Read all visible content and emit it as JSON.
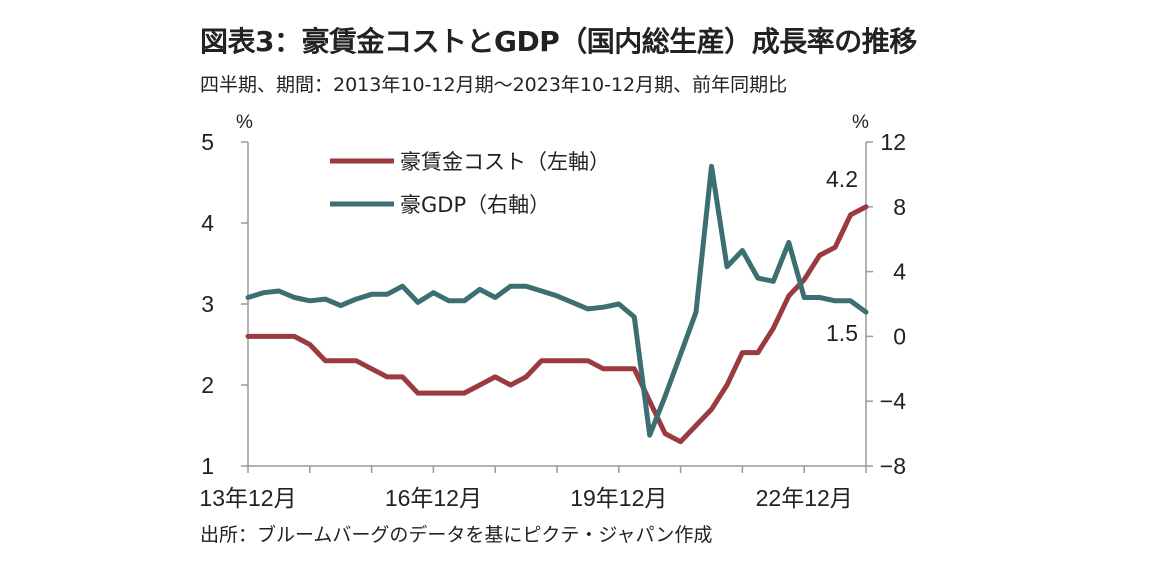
{
  "header": {
    "title": "図表3：豪賃金コストとGDP（国内総生産）成長率の推移",
    "subtitle": "四半期、期間：2013年10-12月期～2023年10-12月期、前年同期比"
  },
  "footer": {
    "source": "出所：ブルームバーグのデータを基にピクテ・ジャパン作成"
  },
  "chart_data": {
    "type": "line",
    "x": [
      "2013Q4",
      "2014Q1",
      "2014Q2",
      "2014Q3",
      "2014Q4",
      "2015Q1",
      "2015Q2",
      "2015Q3",
      "2015Q4",
      "2016Q1",
      "2016Q2",
      "2016Q3",
      "2016Q4",
      "2017Q1",
      "2017Q2",
      "2017Q3",
      "2017Q4",
      "2018Q1",
      "2018Q2",
      "2018Q3",
      "2018Q4",
      "2019Q1",
      "2019Q2",
      "2019Q3",
      "2019Q4",
      "2020Q1",
      "2020Q2",
      "2020Q3",
      "2020Q4",
      "2021Q1",
      "2021Q2",
      "2021Q3",
      "2021Q4",
      "2022Q1",
      "2022Q2",
      "2022Q3",
      "2022Q4",
      "2023Q1",
      "2023Q2",
      "2023Q3",
      "2023Q4"
    ],
    "x_tick_labels": [
      "13年12月",
      "16年12月",
      "19年12月",
      "22年12月"
    ],
    "left_axis": {
      "unit": "%",
      "ylim": [
        1,
        5
      ],
      "ticks": [
        "1",
        "2",
        "3",
        "4",
        "5"
      ]
    },
    "right_axis": {
      "unit": "%",
      "ylim": [
        -8,
        12
      ],
      "ticks": [
        "−8",
        "−4",
        "0",
        "4",
        "8",
        "12"
      ]
    },
    "grid": false,
    "legend_position": "top-left",
    "series": [
      {
        "name": "豪賃金コスト（左軸）",
        "axis": "left",
        "color": "#9b3a3f",
        "values": [
          2.6,
          2.6,
          2.6,
          2.6,
          2.5,
          2.3,
          2.3,
          2.3,
          2.2,
          2.1,
          2.1,
          1.9,
          1.9,
          1.9,
          1.9,
          2.0,
          2.1,
          2.0,
          2.1,
          2.3,
          2.3,
          2.3,
          2.3,
          2.2,
          2.2,
          2.2,
          1.8,
          1.4,
          1.3,
          1.5,
          1.7,
          2.0,
          2.4,
          2.4,
          2.7,
          3.1,
          3.3,
          3.6,
          3.7,
          4.1,
          4.2
        ]
      },
      {
        "name": "豪GDP（右軸）",
        "axis": "right",
        "color": "#3b6f72",
        "values": [
          2.4,
          2.7,
          2.8,
          2.4,
          2.2,
          2.3,
          1.9,
          2.3,
          2.6,
          2.6,
          3.1,
          2.1,
          2.7,
          2.2,
          2.2,
          2.9,
          2.4,
          3.1,
          3.1,
          2.8,
          2.5,
          2.1,
          1.7,
          1.8,
          2.0,
          1.2,
          -6.1,
          -3.7,
          -1.1,
          1.5,
          10.5,
          4.3,
          5.3,
          3.6,
          3.4,
          5.8,
          2.4,
          2.4,
          2.2,
          2.2,
          1.5
        ]
      }
    ],
    "annotations": [
      {
        "text": "4.2",
        "series": "豪賃金コスト（左軸）"
      },
      {
        "text": "1.5",
        "series": "豪GDP（右軸）"
      }
    ]
  }
}
